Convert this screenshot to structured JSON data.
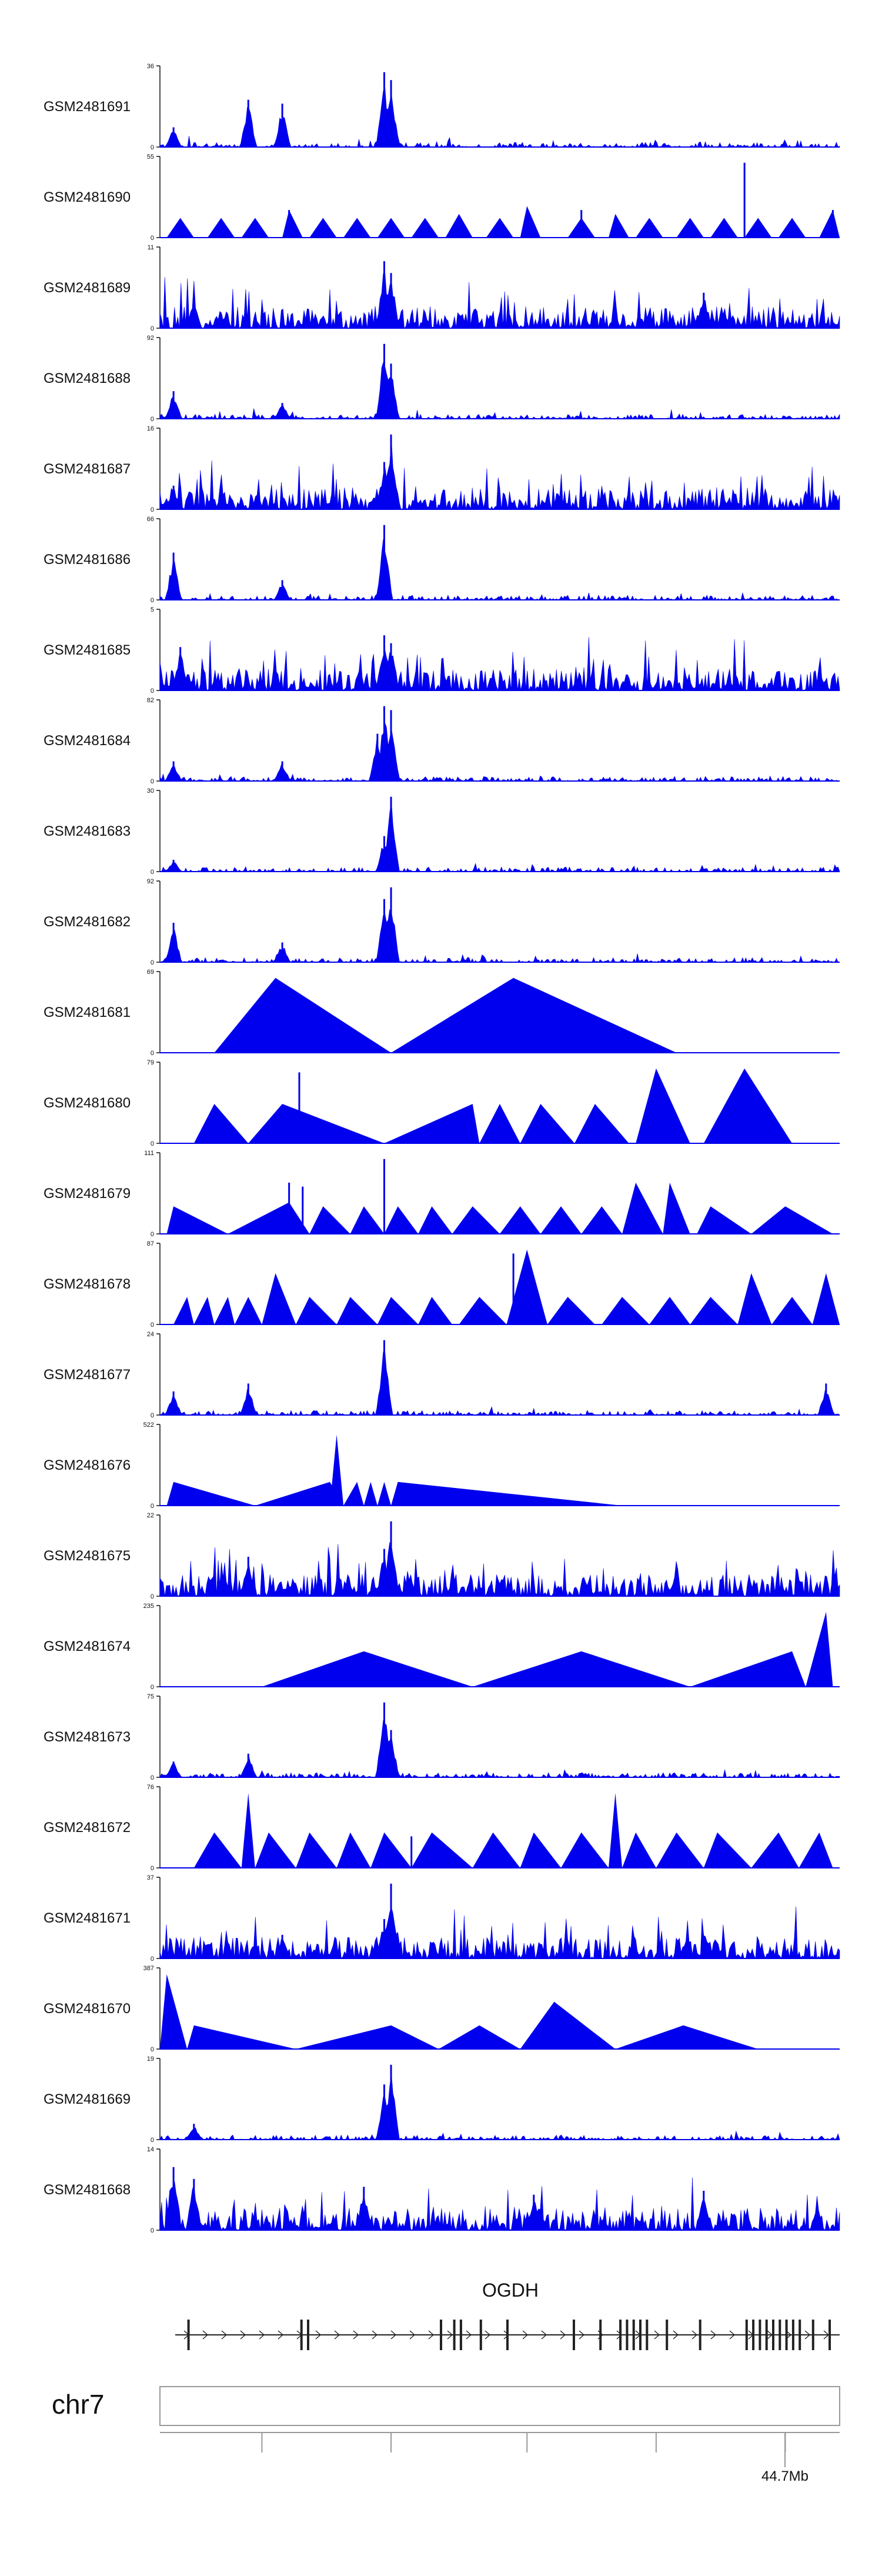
{
  "colors": {
    "signal": "#0000ee",
    "axis": "#111111",
    "gene": "#222222",
    "ideogram": "#999999"
  },
  "chart_data": {
    "type": "area",
    "title": "",
    "chromosome": "chr7",
    "gene": "OGDH",
    "region_tick_label": "44.7Mb",
    "tracks": [
      {
        "name": "GSM2481691",
        "ymax": "36",
        "ymin": "0",
        "ylim": [
          0,
          36
        ],
        "style": "spiky",
        "peaks": [
          [
            0.13,
            0.6
          ],
          [
            0.18,
            0.55
          ],
          [
            0.33,
            0.95
          ],
          [
            0.34,
            0.85
          ],
          [
            0.02,
            0.25
          ]
        ]
      },
      {
        "name": "GSM2481690",
        "ymax": "55",
        "ymin": "0",
        "ylim": [
          0,
          55
        ],
        "style": "triangles",
        "tri": [
          [
            0.01,
            0.03,
            0.05,
            0.25
          ],
          [
            0.07,
            0.09,
            0.11,
            0.25
          ],
          [
            0.12,
            0.14,
            0.16,
            0.25
          ],
          [
            0.18,
            0.19,
            0.21,
            0.35
          ],
          [
            0.22,
            0.24,
            0.26,
            0.25
          ],
          [
            0.27,
            0.29,
            0.31,
            0.25
          ],
          [
            0.32,
            0.34,
            0.36,
            0.25
          ],
          [
            0.37,
            0.39,
            0.41,
            0.25
          ],
          [
            0.42,
            0.44,
            0.46,
            0.3
          ],
          [
            0.48,
            0.5,
            0.52,
            0.25
          ],
          [
            0.53,
            0.54,
            0.56,
            0.4
          ],
          [
            0.6,
            0.62,
            0.64,
            0.25
          ],
          [
            0.66,
            0.67,
            0.69,
            0.3
          ],
          [
            0.7,
            0.72,
            0.74,
            0.25
          ],
          [
            0.76,
            0.78,
            0.8,
            0.25
          ],
          [
            0.81,
            0.83,
            0.85,
            0.25
          ],
          [
            0.86,
            0.88,
            0.9,
            0.25
          ],
          [
            0.91,
            0.93,
            0.95,
            0.25
          ],
          [
            0.97,
            0.99,
            1.0,
            0.35
          ]
        ],
        "peaks": [
          [
            0.86,
            0.95
          ],
          [
            0.62,
            0.35
          ],
          [
            0.19,
            0.35
          ],
          [
            0.99,
            0.35
          ]
        ]
      },
      {
        "name": "GSM2481689",
        "ymax": "11",
        "ymin": "0",
        "ylim": [
          0,
          11
        ],
        "style": "noisy",
        "peaks": [
          [
            0.33,
            0.85
          ],
          [
            0.34,
            0.7
          ],
          [
            0.05,
            0.35
          ],
          [
            0.8,
            0.45
          ]
        ]
      },
      {
        "name": "GSM2481688",
        "ymax": "92",
        "ymin": "0",
        "ylim": [
          0,
          92
        ],
        "style": "spiky",
        "peaks": [
          [
            0.33,
            0.95
          ],
          [
            0.34,
            0.7
          ],
          [
            0.02,
            0.35
          ],
          [
            0.18,
            0.2
          ]
        ]
      },
      {
        "name": "GSM2481687",
        "ymax": "16",
        "ymin": "0",
        "ylim": [
          0,
          16
        ],
        "style": "noisy",
        "peaks": [
          [
            0.34,
            0.95
          ],
          [
            0.33,
            0.6
          ],
          [
            0.02,
            0.3
          ]
        ]
      },
      {
        "name": "GSM2481686",
        "ymax": "66",
        "ymin": "0",
        "ylim": [
          0,
          66
        ],
        "style": "spiky",
        "peaks": [
          [
            0.33,
            0.95
          ],
          [
            0.02,
            0.6
          ],
          [
            0.18,
            0.25
          ]
        ]
      },
      {
        "name": "GSM2481685",
        "ymax": "5",
        "ymin": "0",
        "ylim": [
          0,
          5
        ],
        "style": "noisy",
        "peaks": [
          [
            0.33,
            0.7
          ],
          [
            0.34,
            0.6
          ],
          [
            0.03,
            0.55
          ]
        ]
      },
      {
        "name": "GSM2481684",
        "ymax": "82",
        "ymin": "0",
        "ylim": [
          0,
          82
        ],
        "style": "spiky",
        "peaks": [
          [
            0.33,
            0.95
          ],
          [
            0.34,
            0.9
          ],
          [
            0.32,
            0.6
          ],
          [
            0.02,
            0.25
          ],
          [
            0.18,
            0.25
          ]
        ]
      },
      {
        "name": "GSM2481683",
        "ymax": "30",
        "ymin": "0",
        "ylim": [
          0,
          30
        ],
        "style": "spiky",
        "peaks": [
          [
            0.34,
            0.95
          ],
          [
            0.33,
            0.45
          ],
          [
            0.02,
            0.15
          ]
        ]
      },
      {
        "name": "GSM2481682",
        "ymax": "92",
        "ymin": "0",
        "ylim": [
          0,
          92
        ],
        "style": "spiky",
        "peaks": [
          [
            0.34,
            0.95
          ],
          [
            0.33,
            0.8
          ],
          [
            0.02,
            0.5
          ],
          [
            0.18,
            0.25
          ]
        ]
      },
      {
        "name": "GSM2481681",
        "ymax": "69",
        "ymin": "0",
        "ylim": [
          0,
          69
        ],
        "style": "triangles",
        "tri": [
          [
            0.08,
            0.17,
            0.34,
            0.95
          ],
          [
            0.34,
            0.52,
            0.76,
            0.95
          ]
        ],
        "peaks": []
      },
      {
        "name": "GSM2481680",
        "ymax": "79",
        "ymin": "0",
        "ylim": [
          0,
          79
        ],
        "style": "triangles",
        "tri": [
          [
            0.05,
            0.08,
            0.13,
            0.5
          ],
          [
            0.13,
            0.18,
            0.33,
            0.5
          ],
          [
            0.33,
            0.46,
            0.47,
            0.5
          ],
          [
            0.47,
            0.5,
            0.53,
            0.5
          ],
          [
            0.53,
            0.56,
            0.61,
            0.5
          ],
          [
            0.61,
            0.64,
            0.69,
            0.5
          ],
          [
            0.7,
            0.73,
            0.78,
            0.95
          ],
          [
            0.8,
            0.86,
            0.93,
            0.95
          ]
        ],
        "peaks": [
          [
            0.205,
            0.9
          ]
        ]
      },
      {
        "name": "GSM2481679",
        "ymax": "111",
        "ymin": "0",
        "ylim": [
          0,
          111
        ],
        "style": "triangles",
        "tri": [
          [
            0.01,
            0.02,
            0.1,
            0.35
          ],
          [
            0.1,
            0.19,
            0.22,
            0.4
          ],
          [
            0.22,
            0.24,
            0.28,
            0.35
          ],
          [
            0.28,
            0.3,
            0.33,
            0.35
          ],
          [
            0.33,
            0.35,
            0.38,
            0.35
          ],
          [
            0.38,
            0.4,
            0.43,
            0.35
          ],
          [
            0.43,
            0.46,
            0.5,
            0.35
          ],
          [
            0.5,
            0.53,
            0.56,
            0.35
          ],
          [
            0.56,
            0.59,
            0.62,
            0.35
          ],
          [
            0.62,
            0.65,
            0.68,
            0.35
          ],
          [
            0.68,
            0.7,
            0.74,
            0.65
          ],
          [
            0.74,
            0.75,
            0.78,
            0.65
          ],
          [
            0.79,
            0.81,
            0.87,
            0.35
          ],
          [
            0.87,
            0.92,
            0.99,
            0.35
          ]
        ],
        "peaks": [
          [
            0.33,
            0.95
          ],
          [
            0.19,
            0.65
          ],
          [
            0.21,
            0.6
          ]
        ]
      },
      {
        "name": "GSM2481678",
        "ymax": "87",
        "ymin": "0",
        "ylim": [
          0,
          87
        ],
        "style": "triangles",
        "tri": [
          [
            0.02,
            0.04,
            0.05,
            0.35
          ],
          [
            0.05,
            0.07,
            0.08,
            0.35
          ],
          [
            0.08,
            0.1,
            0.11,
            0.35
          ],
          [
            0.11,
            0.13,
            0.15,
            0.35
          ],
          [
            0.15,
            0.17,
            0.2,
            0.65
          ],
          [
            0.2,
            0.22,
            0.26,
            0.35
          ],
          [
            0.26,
            0.28,
            0.32,
            0.35
          ],
          [
            0.32,
            0.34,
            0.38,
            0.35
          ],
          [
            0.38,
            0.4,
            0.43,
            0.35
          ],
          [
            0.44,
            0.47,
            0.51,
            0.35
          ],
          [
            0.51,
            0.54,
            0.57,
            0.95
          ],
          [
            0.57,
            0.6,
            0.64,
            0.35
          ],
          [
            0.65,
            0.68,
            0.72,
            0.35
          ],
          [
            0.72,
            0.75,
            0.78,
            0.35
          ],
          [
            0.78,
            0.81,
            0.85,
            0.35
          ],
          [
            0.85,
            0.87,
            0.9,
            0.65
          ],
          [
            0.9,
            0.93,
            0.96,
            0.35
          ],
          [
            0.96,
            0.98,
            1.0,
            0.65
          ]
        ],
        "peaks": [
          [
            0.52,
            0.9
          ]
        ]
      },
      {
        "name": "GSM2481677",
        "ymax": "24",
        "ymin": "0",
        "ylim": [
          0,
          24
        ],
        "style": "spiky",
        "peaks": [
          [
            0.33,
            0.95
          ],
          [
            0.13,
            0.4
          ],
          [
            0.98,
            0.4
          ],
          [
            0.02,
            0.3
          ]
        ]
      },
      {
        "name": "GSM2481676",
        "ymax": "522",
        "ymin": "0",
        "ylim": [
          0,
          522
        ],
        "style": "triangles",
        "tri": [
          [
            0.01,
            0.02,
            0.14,
            0.3
          ],
          [
            0.14,
            0.25,
            0.27,
            0.3
          ],
          [
            0.25,
            0.26,
            0.27,
            0.9
          ],
          [
            0.27,
            0.29,
            0.3,
            0.3
          ],
          [
            0.3,
            0.31,
            0.32,
            0.3
          ],
          [
            0.32,
            0.33,
            0.34,
            0.3
          ],
          [
            0.34,
            0.35,
            0.68,
            0.3
          ]
        ],
        "peaks": []
      },
      {
        "name": "GSM2481675",
        "ymax": "22",
        "ymin": "0",
        "ylim": [
          0,
          22
        ],
        "style": "noisy",
        "peaks": [
          [
            0.34,
            0.95
          ],
          [
            0.33,
            0.6
          ],
          [
            0.13,
            0.5
          ]
        ]
      },
      {
        "name": "GSM2481674",
        "ymax": "235",
        "ymin": "0",
        "ylim": [
          0,
          235
        ],
        "style": "triangles",
        "tri": [
          [
            0.15,
            0.3,
            0.46,
            0.45
          ],
          [
            0.46,
            0.62,
            0.78,
            0.45
          ],
          [
            0.78,
            0.93,
            0.95,
            0.45
          ],
          [
            0.95,
            0.98,
            0.99,
            0.95
          ]
        ],
        "peaks": []
      },
      {
        "name": "GSM2481673",
        "ymax": "75",
        "ymin": "0",
        "ylim": [
          0,
          75
        ],
        "style": "spiky",
        "peaks": [
          [
            0.33,
            0.95
          ],
          [
            0.34,
            0.6
          ],
          [
            0.13,
            0.3
          ],
          [
            0.02,
            0.2
          ]
        ]
      },
      {
        "name": "GSM2481672",
        "ymax": "76",
        "ymin": "0",
        "ylim": [
          0,
          76
        ],
        "style": "triangles",
        "tri": [
          [
            0.05,
            0.08,
            0.12,
            0.45
          ],
          [
            0.12,
            0.13,
            0.14,
            0.95
          ],
          [
            0.14,
            0.16,
            0.2,
            0.45
          ],
          [
            0.2,
            0.22,
            0.26,
            0.45
          ],
          [
            0.26,
            0.28,
            0.31,
            0.45
          ],
          [
            0.31,
            0.33,
            0.37,
            0.45
          ],
          [
            0.37,
            0.4,
            0.46,
            0.45
          ],
          [
            0.46,
            0.49,
            0.53,
            0.45
          ],
          [
            0.53,
            0.55,
            0.59,
            0.45
          ],
          [
            0.59,
            0.62,
            0.66,
            0.45
          ],
          [
            0.66,
            0.67,
            0.68,
            0.95
          ],
          [
            0.68,
            0.7,
            0.73,
            0.45
          ],
          [
            0.73,
            0.76,
            0.8,
            0.45
          ],
          [
            0.8,
            0.82,
            0.87,
            0.45
          ],
          [
            0.87,
            0.91,
            0.94,
            0.45
          ],
          [
            0.94,
            0.97,
            0.99,
            0.45
          ]
        ],
        "peaks": [
          [
            0.37,
            0.4
          ]
        ]
      },
      {
        "name": "GSM2481671",
        "ymax": "37",
        "ymin": "0",
        "ylim": [
          0,
          37
        ],
        "style": "noisy",
        "peaks": [
          [
            0.34,
            0.95
          ],
          [
            0.33,
            0.5
          ],
          [
            0.18,
            0.3
          ]
        ]
      },
      {
        "name": "GSM2481670",
        "ymax": "387",
        "ymin": "0",
        "ylim": [
          0,
          387
        ],
        "style": "triangles",
        "tri": [
          [
            0.0,
            0.01,
            0.04,
            0.95
          ],
          [
            0.04,
            0.05,
            0.2,
            0.3
          ],
          [
            0.2,
            0.34,
            0.41,
            0.3
          ],
          [
            0.41,
            0.47,
            0.53,
            0.3
          ],
          [
            0.53,
            0.58,
            0.67,
            0.6
          ],
          [
            0.67,
            0.77,
            0.88,
            0.3
          ]
        ],
        "peaks": []
      },
      {
        "name": "GSM2481669",
        "ymax": "19",
        "ymin": "0",
        "ylim": [
          0,
          19
        ],
        "style": "spiky",
        "peaks": [
          [
            0.34,
            0.95
          ],
          [
            0.33,
            0.7
          ],
          [
            0.05,
            0.2
          ]
        ]
      },
      {
        "name": "GSM2481668",
        "ymax": "14",
        "ymin": "0",
        "ylim": [
          0,
          14
        ],
        "style": "noisy",
        "peaks": [
          [
            0.02,
            0.8
          ],
          [
            0.05,
            0.65
          ],
          [
            0.3,
            0.55
          ],
          [
            0.55,
            0.45
          ],
          [
            0.8,
            0.5
          ]
        ]
      }
    ],
    "gene_model": {
      "exons": [
        0.02,
        0.19,
        0.2,
        0.4,
        0.42,
        0.43,
        0.46,
        0.5,
        0.6,
        0.64,
        0.67,
        0.68,
        0.69,
        0.7,
        0.71,
        0.74,
        0.79,
        0.86,
        0.87,
        0.88,
        0.89,
        0.9,
        0.91,
        0.92,
        0.93,
        0.94,
        0.96,
        0.985
      ],
      "strand": "+"
    },
    "axis_ticks": [
      0.15,
      0.34,
      0.54,
      0.73,
      0.92
    ]
  }
}
